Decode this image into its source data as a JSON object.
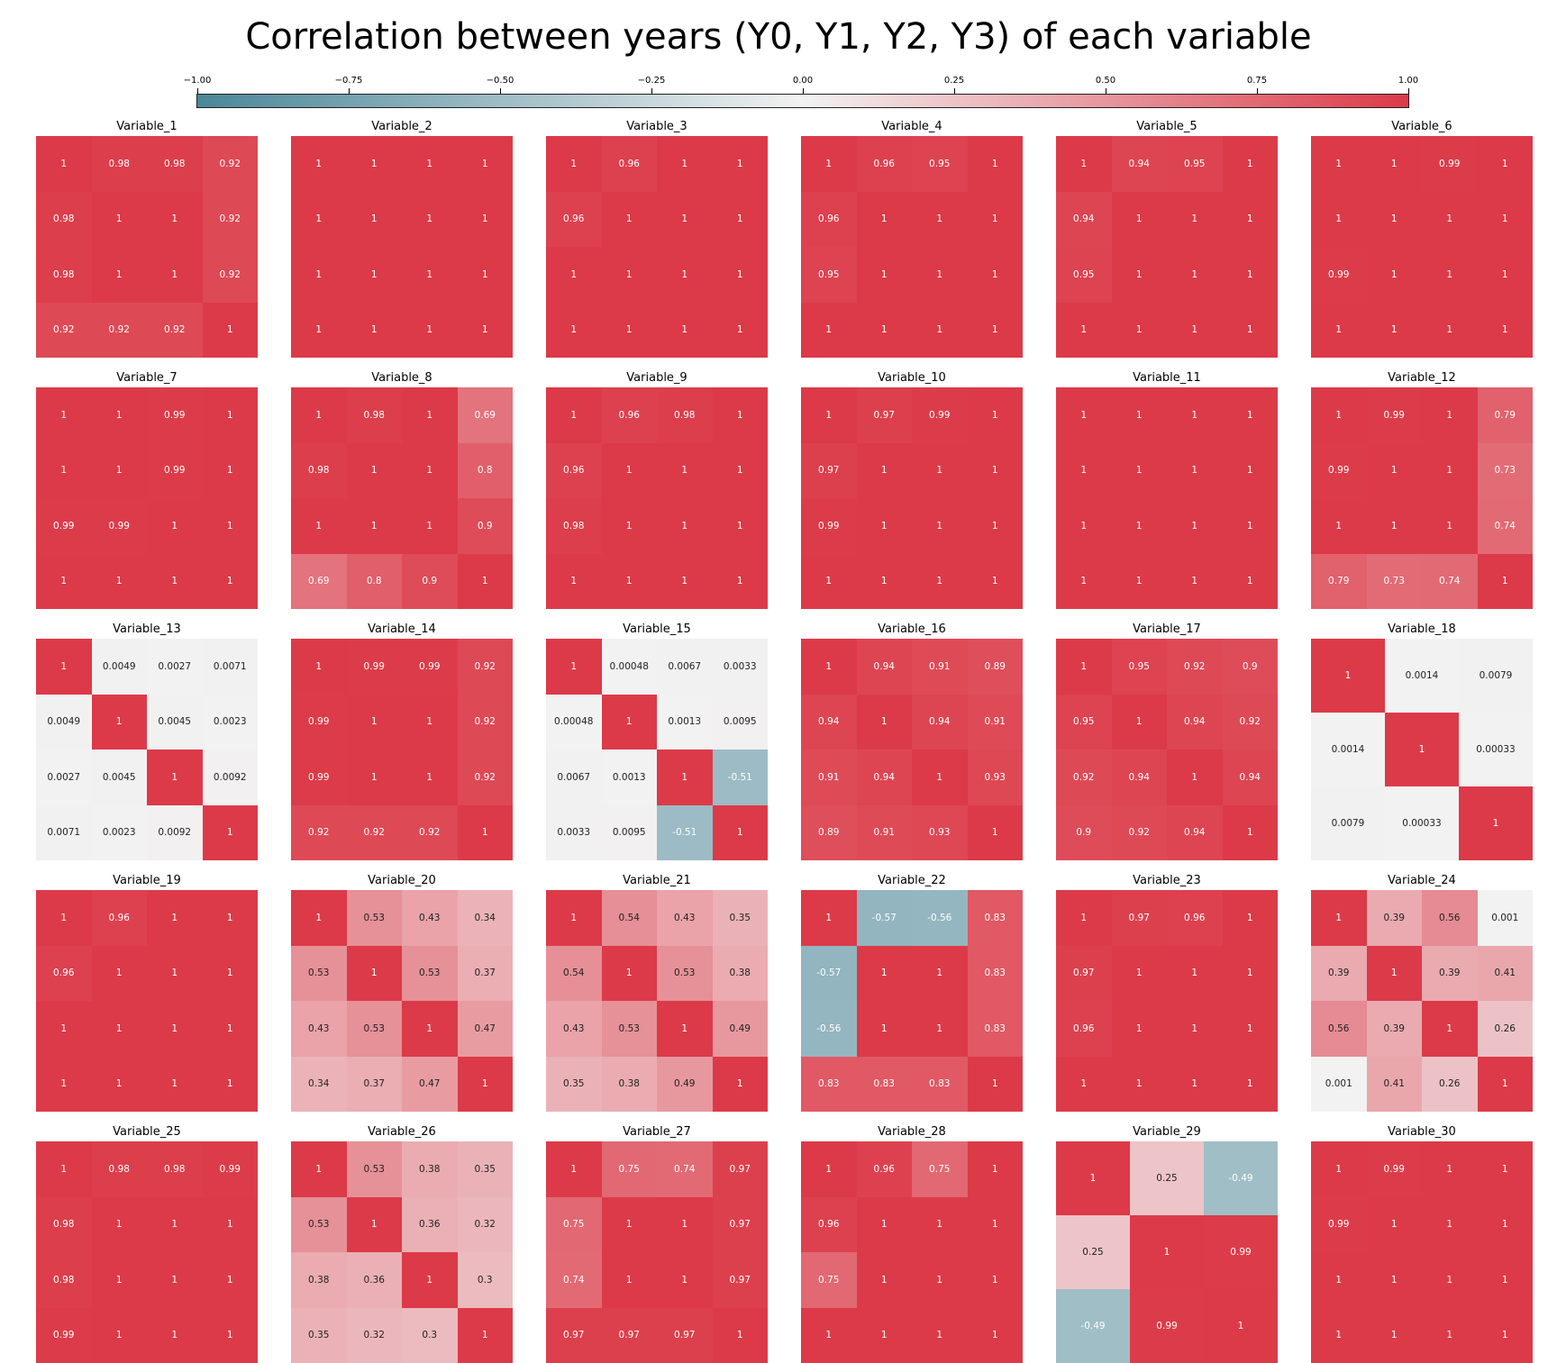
{
  "title": "Correlation between years (Y0, Y1, Y2, Y3) of each variable",
  "colors": {
    "negative": "#4a8798",
    "neutral": "#f2f2f2",
    "positive": "#dc3a48"
  },
  "chart_data": {
    "type": "heatmap",
    "colorbar": {
      "min": -1.0,
      "max": 1.0,
      "ticks": [
        "−1.00",
        "−0.75",
        "−0.50",
        "−0.25",
        "0.00",
        "0.25",
        "0.50",
        "0.75",
        "1.00"
      ]
    },
    "panels": [
      {
        "name": "Variable_1",
        "labels": [
          [
            "1",
            "0.98",
            "0.98",
            "0.92"
          ],
          [
            "0.98",
            "1",
            "1",
            "0.92"
          ],
          [
            "0.98",
            "1",
            "1",
            "0.92"
          ],
          [
            "0.92",
            "0.92",
            "0.92",
            "1"
          ]
        ]
      },
      {
        "name": "Variable_2",
        "labels": [
          [
            "1",
            "1",
            "1",
            "1"
          ],
          [
            "1",
            "1",
            "1",
            "1"
          ],
          [
            "1",
            "1",
            "1",
            "1"
          ],
          [
            "1",
            "1",
            "1",
            "1"
          ]
        ]
      },
      {
        "name": "Variable_3",
        "labels": [
          [
            "1",
            "0.96",
            "1",
            "1"
          ],
          [
            "0.96",
            "1",
            "1",
            "1"
          ],
          [
            "1",
            "1",
            "1",
            "1"
          ],
          [
            "1",
            "1",
            "1",
            "1"
          ]
        ]
      },
      {
        "name": "Variable_4",
        "labels": [
          [
            "1",
            "0.96",
            "0.95",
            "1"
          ],
          [
            "0.96",
            "1",
            "1",
            "1"
          ],
          [
            "0.95",
            "1",
            "1",
            "1"
          ],
          [
            "1",
            "1",
            "1",
            "1"
          ]
        ]
      },
      {
        "name": "Variable_5",
        "labels": [
          [
            "1",
            "0.94",
            "0.95",
            "1"
          ],
          [
            "0.94",
            "1",
            "1",
            "1"
          ],
          [
            "0.95",
            "1",
            "1",
            "1"
          ],
          [
            "1",
            "1",
            "1",
            "1"
          ]
        ]
      },
      {
        "name": "Variable_6",
        "labels": [
          [
            "1",
            "1",
            "0.99",
            "1"
          ],
          [
            "1",
            "1",
            "1",
            "1"
          ],
          [
            "0.99",
            "1",
            "1",
            "1"
          ],
          [
            "1",
            "1",
            "1",
            "1"
          ]
        ]
      },
      {
        "name": "Variable_7",
        "labels": [
          [
            "1",
            "1",
            "0.99",
            "1"
          ],
          [
            "1",
            "1",
            "0.99",
            "1"
          ],
          [
            "0.99",
            "0.99",
            "1",
            "1"
          ],
          [
            "1",
            "1",
            "1",
            "1"
          ]
        ]
      },
      {
        "name": "Variable_8",
        "labels": [
          [
            "1",
            "0.98",
            "1",
            "0.69"
          ],
          [
            "0.98",
            "1",
            "1",
            "0.8"
          ],
          [
            "1",
            "1",
            "1",
            "0.9"
          ],
          [
            "0.69",
            "0.8",
            "0.9",
            "1"
          ]
        ]
      },
      {
        "name": "Variable_9",
        "labels": [
          [
            "1",
            "0.96",
            "0.98",
            "1"
          ],
          [
            "0.96",
            "1",
            "1",
            "1"
          ],
          [
            "0.98",
            "1",
            "1",
            "1"
          ],
          [
            "1",
            "1",
            "1",
            "1"
          ]
        ]
      },
      {
        "name": "Variable_10",
        "labels": [
          [
            "1",
            "0.97",
            "0.99",
            "1"
          ],
          [
            "0.97",
            "1",
            "1",
            "1"
          ],
          [
            "0.99",
            "1",
            "1",
            "1"
          ],
          [
            "1",
            "1",
            "1",
            "1"
          ]
        ]
      },
      {
        "name": "Variable_11",
        "labels": [
          [
            "1",
            "1",
            "1",
            "1"
          ],
          [
            "1",
            "1",
            "1",
            "1"
          ],
          [
            "1",
            "1",
            "1",
            "1"
          ],
          [
            "1",
            "1",
            "1",
            "1"
          ]
        ]
      },
      {
        "name": "Variable_12",
        "labels": [
          [
            "1",
            "0.99",
            "1",
            "0.79"
          ],
          [
            "0.99",
            "1",
            "1",
            "0.73"
          ],
          [
            "1",
            "1",
            "1",
            "0.74"
          ],
          [
            "0.79",
            "0.73",
            "0.74",
            "1"
          ]
        ]
      },
      {
        "name": "Variable_13",
        "labels": [
          [
            "1",
            "0.0049",
            "0.0027",
            "0.0071"
          ],
          [
            "0.0049",
            "1",
            "0.0045",
            "0.0023"
          ],
          [
            "0.0027",
            "0.0045",
            "1",
            "0.0092"
          ],
          [
            "0.0071",
            "0.0023",
            "0.0092",
            "1"
          ]
        ]
      },
      {
        "name": "Variable_14",
        "labels": [
          [
            "1",
            "0.99",
            "0.99",
            "0.92"
          ],
          [
            "0.99",
            "1",
            "1",
            "0.92"
          ],
          [
            "0.99",
            "1",
            "1",
            "0.92"
          ],
          [
            "0.92",
            "0.92",
            "0.92",
            "1"
          ]
        ]
      },
      {
        "name": "Variable_15",
        "labels": [
          [
            "1",
            "0.00048",
            "0.0067",
            "0.0033"
          ],
          [
            "0.00048",
            "1",
            "0.0013",
            "0.0095"
          ],
          [
            "0.0067",
            "0.0013",
            "1",
            "-0.51"
          ],
          [
            "0.0033",
            "0.0095",
            "-0.51",
            "1"
          ]
        ]
      },
      {
        "name": "Variable_16",
        "labels": [
          [
            "1",
            "0.94",
            "0.91",
            "0.89"
          ],
          [
            "0.94",
            "1",
            "0.94",
            "0.91"
          ],
          [
            "0.91",
            "0.94",
            "1",
            "0.93"
          ],
          [
            "0.89",
            "0.91",
            "0.93",
            "1"
          ]
        ]
      },
      {
        "name": "Variable_17",
        "labels": [
          [
            "1",
            "0.95",
            "0.92",
            "0.9"
          ],
          [
            "0.95",
            "1",
            "0.94",
            "0.92"
          ],
          [
            "0.92",
            "0.94",
            "1",
            "0.94"
          ],
          [
            "0.9",
            "0.92",
            "0.94",
            "1"
          ]
        ]
      },
      {
        "name": "Variable_18",
        "labels": [
          [
            "1",
            "0.0014",
            "0.0079"
          ],
          [
            "0.0014",
            "1",
            "0.00033"
          ],
          [
            "0.0079",
            "0.00033",
            "1"
          ]
        ]
      },
      {
        "name": "Variable_19",
        "labels": [
          [
            "1",
            "0.96",
            "1",
            "1"
          ],
          [
            "0.96",
            "1",
            "1",
            "1"
          ],
          [
            "1",
            "1",
            "1",
            "1"
          ],
          [
            "1",
            "1",
            "1",
            "1"
          ]
        ]
      },
      {
        "name": "Variable_20",
        "labels": [
          [
            "1",
            "0.53",
            "0.43",
            "0.34"
          ],
          [
            "0.53",
            "1",
            "0.53",
            "0.37"
          ],
          [
            "0.43",
            "0.53",
            "1",
            "0.47"
          ],
          [
            "0.34",
            "0.37",
            "0.47",
            "1"
          ]
        ]
      },
      {
        "name": "Variable_21",
        "labels": [
          [
            "1",
            "0.54",
            "0.43",
            "0.35"
          ],
          [
            "0.54",
            "1",
            "0.53",
            "0.38"
          ],
          [
            "0.43",
            "0.53",
            "1",
            "0.49"
          ],
          [
            "0.35",
            "0.38",
            "0.49",
            "1"
          ]
        ]
      },
      {
        "name": "Variable_22",
        "labels": [
          [
            "1",
            "-0.57",
            "-0.56",
            "0.83"
          ],
          [
            "-0.57",
            "1",
            "1",
            "0.83"
          ],
          [
            "-0.56",
            "1",
            "1",
            "0.83"
          ],
          [
            "0.83",
            "0.83",
            "0.83",
            "1"
          ]
        ]
      },
      {
        "name": "Variable_23",
        "labels": [
          [
            "1",
            "0.97",
            "0.96",
            "1"
          ],
          [
            "0.97",
            "1",
            "1",
            "1"
          ],
          [
            "0.96",
            "1",
            "1",
            "1"
          ],
          [
            "1",
            "1",
            "1",
            "1"
          ]
        ]
      },
      {
        "name": "Variable_24",
        "labels": [
          [
            "1",
            "0.39",
            "0.56",
            "0.001"
          ],
          [
            "0.39",
            "1",
            "0.39",
            "0.41"
          ],
          [
            "0.56",
            "0.39",
            "1",
            "0.26"
          ],
          [
            "0.001",
            "0.41",
            "0.26",
            "1"
          ]
        ]
      },
      {
        "name": "Variable_25",
        "labels": [
          [
            "1",
            "0.98",
            "0.98",
            "0.99"
          ],
          [
            "0.98",
            "1",
            "1",
            "1"
          ],
          [
            "0.98",
            "1",
            "1",
            "1"
          ],
          [
            "0.99",
            "1",
            "1",
            "1"
          ]
        ]
      },
      {
        "name": "Variable_26",
        "labels": [
          [
            "1",
            "0.53",
            "0.38",
            "0.35"
          ],
          [
            "0.53",
            "1",
            "0.36",
            "0.32"
          ],
          [
            "0.38",
            "0.36",
            "1",
            "0.3"
          ],
          [
            "0.35",
            "0.32",
            "0.3",
            "1"
          ]
        ]
      },
      {
        "name": "Variable_27",
        "labels": [
          [
            "1",
            "0.75",
            "0.74",
            "0.97"
          ],
          [
            "0.75",
            "1",
            "1",
            "0.97"
          ],
          [
            "0.74",
            "1",
            "1",
            "0.97"
          ],
          [
            "0.97",
            "0.97",
            "0.97",
            "1"
          ]
        ]
      },
      {
        "name": "Variable_28",
        "labels": [
          [
            "1",
            "0.96",
            "0.75",
            "1"
          ],
          [
            "0.96",
            "1",
            "1",
            "1"
          ],
          [
            "0.75",
            "1",
            "1",
            "1"
          ],
          [
            "1",
            "1",
            "1",
            "1"
          ]
        ]
      },
      {
        "name": "Variable_29",
        "labels": [
          [
            "1",
            "0.25",
            "-0.49"
          ],
          [
            "0.25",
            "1",
            "0.99"
          ],
          [
            "-0.49",
            "0.99",
            "1"
          ]
        ]
      },
      {
        "name": "Variable_30",
        "labels": [
          [
            "1",
            "0.99",
            "1",
            "1"
          ],
          [
            "0.99",
            "1",
            "1",
            "1"
          ],
          [
            "1",
            "1",
            "1",
            "1"
          ],
          [
            "1",
            "1",
            "1",
            "1"
          ]
        ]
      }
    ]
  }
}
